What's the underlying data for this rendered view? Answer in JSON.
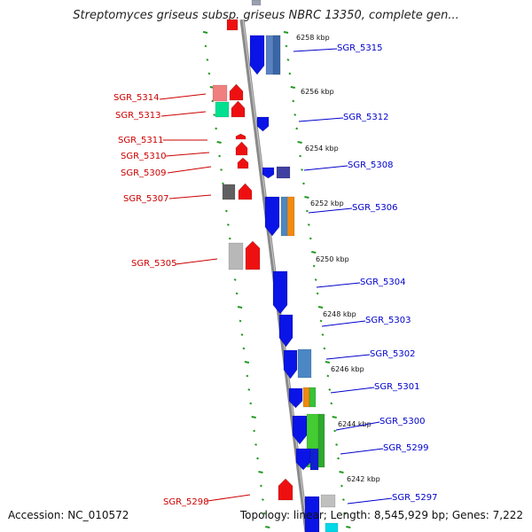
{
  "title": "Streptomyces griseus subsp. griseus NBRC 13350, complete gen...",
  "footer": {
    "accession": "Accession: NC_010572",
    "summary": "Topology: linear; Length: 8,545,929 bp; Genes: 7,222"
  },
  "colors": {
    "left_labels": "#cc0000",
    "right_labels": "#0000cc",
    "axis": "#8a8a8a",
    "ruler_ticks": "#229922",
    "forward_strand": "#0a14e6",
    "reverse_strand": "#ee1010"
  },
  "scale_labels": [
    "6258 kbp",
    "6256 kbp",
    "6254 kbp",
    "6252 kbp",
    "6250 kbp",
    "6248 kbp",
    "6246 kbp",
    "6244 kbp",
    "6242 kbp"
  ],
  "left_genes": [
    "SGR_5314",
    "SGR_5313",
    "SGR_5311",
    "SGR_5310",
    "SGR_5309",
    "SGR_5307",
    "SGR_5305",
    "SGR_5298"
  ],
  "right_genes": [
    "SGR_5315",
    "SGR_5312",
    "SGR_5308",
    "SGR_5306",
    "SGR_5304",
    "SGR_5303",
    "SGR_5302",
    "SGR_5301",
    "SGR_5300",
    "SGR_5299",
    "SGR_5297"
  ]
}
